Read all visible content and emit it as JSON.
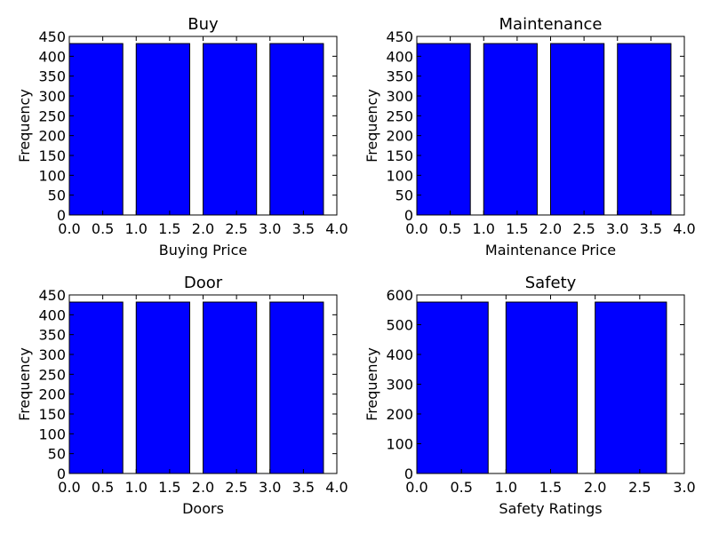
{
  "chart_data": [
    {
      "type": "bar",
      "title": "Buy",
      "xlabel": "Buying Price",
      "ylabel": "Frequency",
      "x": [
        0,
        1,
        2,
        3
      ],
      "values": [
        432,
        432,
        432,
        432
      ],
      "bar_width": 0.8,
      "xlim": [
        0,
        4
      ],
      "ylim": [
        0,
        450
      ],
      "xticks": [
        "0.0",
        "0.5",
        "1.0",
        "1.5",
        "2.0",
        "2.5",
        "3.0",
        "3.5",
        "4.0"
      ],
      "yticks": [
        "0",
        "50",
        "100",
        "150",
        "200",
        "250",
        "300",
        "350",
        "400",
        "450"
      ],
      "color": "#0000ff",
      "grid": false
    },
    {
      "type": "bar",
      "title": "Maintenance",
      "xlabel": "Maintenance Price",
      "ylabel": "Frequency",
      "x": [
        0,
        1,
        2,
        3
      ],
      "values": [
        432,
        432,
        432,
        432
      ],
      "bar_width": 0.8,
      "xlim": [
        0,
        4
      ],
      "ylim": [
        0,
        450
      ],
      "xticks": [
        "0.0",
        "0.5",
        "1.0",
        "1.5",
        "2.0",
        "2.5",
        "3.0",
        "3.5",
        "4.0"
      ],
      "yticks": [
        "0",
        "50",
        "100",
        "150",
        "200",
        "250",
        "300",
        "350",
        "400",
        "450"
      ],
      "color": "#0000ff",
      "grid": false
    },
    {
      "type": "bar",
      "title": "Door",
      "xlabel": "Doors",
      "ylabel": "Frequency",
      "x": [
        0,
        1,
        2,
        3
      ],
      "values": [
        432,
        432,
        432,
        432
      ],
      "bar_width": 0.8,
      "xlim": [
        0,
        4
      ],
      "ylim": [
        0,
        450
      ],
      "xticks": [
        "0.0",
        "0.5",
        "1.0",
        "1.5",
        "2.0",
        "2.5",
        "3.0",
        "3.5",
        "4.0"
      ],
      "yticks": [
        "0",
        "50",
        "100",
        "150",
        "200",
        "250",
        "300",
        "350",
        "400",
        "450"
      ],
      "color": "#0000ff",
      "grid": false
    },
    {
      "type": "bar",
      "title": "Safety",
      "xlabel": "Safety Ratings",
      "ylabel": "Frequency",
      "x": [
        0,
        1,
        2
      ],
      "values": [
        576,
        576,
        576
      ],
      "bar_width": 0.8,
      "xlim": [
        0,
        3
      ],
      "ylim": [
        0,
        600
      ],
      "xticks": [
        "0.0",
        "0.5",
        "1.0",
        "1.5",
        "2.0",
        "2.5",
        "3.0"
      ],
      "yticks": [
        "0",
        "100",
        "200",
        "300",
        "400",
        "500",
        "600"
      ],
      "color": "#0000ff",
      "grid": false
    }
  ]
}
